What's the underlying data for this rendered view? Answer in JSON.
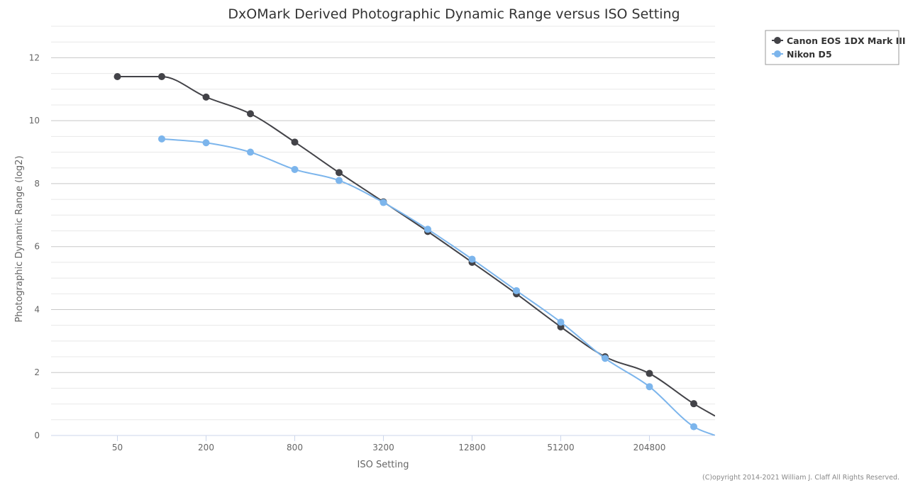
{
  "chart_data": {
    "type": "line",
    "title": "DxOMark Derived Photographic Dynamic Range versus ISO Setting",
    "xlabel": "ISO Setting",
    "ylabel": "Photographic Dynamic Range (log2)",
    "x_scale": "log2",
    "x_ticks": [
      "50",
      "200",
      "800",
      "3200",
      "12800",
      "51200",
      "204800"
    ],
    "y_ticks": [
      "0",
      "2",
      "4",
      "6",
      "8",
      "10",
      "12"
    ],
    "ylim": [
      0,
      13
    ],
    "grid": true,
    "legend_position": "top-right",
    "series": [
      {
        "name": "Canon EOS 1DX Mark III",
        "color": "#434348",
        "x": [
          50,
          100,
          200,
          400,
          800,
          1600,
          3200,
          6400,
          12800,
          25600,
          51200,
          102400,
          204800,
          409600
        ],
        "values": [
          11.4,
          11.4,
          10.75,
          10.22,
          9.32,
          8.35,
          7.42,
          6.48,
          5.5,
          4.5,
          3.45,
          2.5,
          1.97,
          1.01
        ]
      },
      {
        "name": "Nikon D5",
        "color": "#7cb5ec",
        "x": [
          100,
          200,
          400,
          800,
          1600,
          3200,
          6400,
          12800,
          25600,
          51200,
          102400,
          204800,
          409600
        ],
        "values": [
          9.42,
          9.3,
          9.0,
          8.45,
          8.1,
          7.4,
          6.55,
          5.6,
          4.6,
          3.6,
          2.45,
          1.55,
          0.28
        ]
      }
    ]
  },
  "credit": "(C)opyright 2014-2021 William J. Claff All Rights Reserved."
}
